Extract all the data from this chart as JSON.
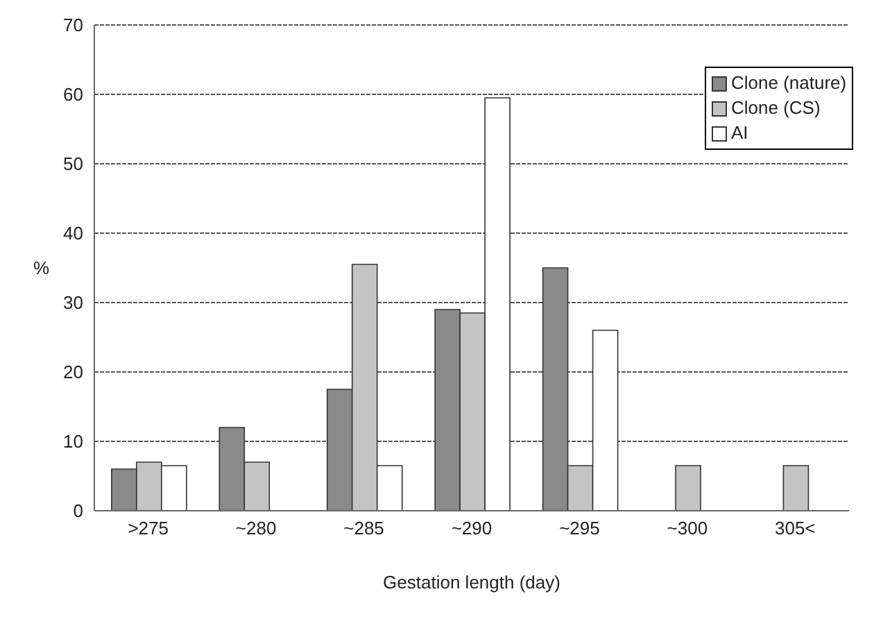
{
  "chart_data": {
    "type": "bar",
    "xlabel": "Gestation length (day)",
    "ylabel": "%",
    "categories": [
      ">275",
      "~280",
      "~285",
      "~290",
      "~295",
      "~300",
      "305<"
    ],
    "series": [
      {
        "name": "Clone (nature)",
        "color": "#8a8a8a",
        "values": [
          6,
          12,
          17.5,
          29,
          35,
          0,
          0
        ]
      },
      {
        "name": "Clone (CS)",
        "color": "#c4c4c4",
        "values": [
          7,
          7,
          35.5,
          28.5,
          6.5,
          6.5,
          6.5
        ]
      },
      {
        "name": "AI",
        "color": "#ffffff",
        "values": [
          6.5,
          0,
          6.5,
          59.5,
          26,
          0,
          0
        ]
      }
    ],
    "ylim": [
      0,
      70
    ],
    "yticks": [
      0,
      10,
      20,
      30,
      40,
      50,
      60,
      70
    ],
    "grid": "y",
    "legend": "top right"
  }
}
